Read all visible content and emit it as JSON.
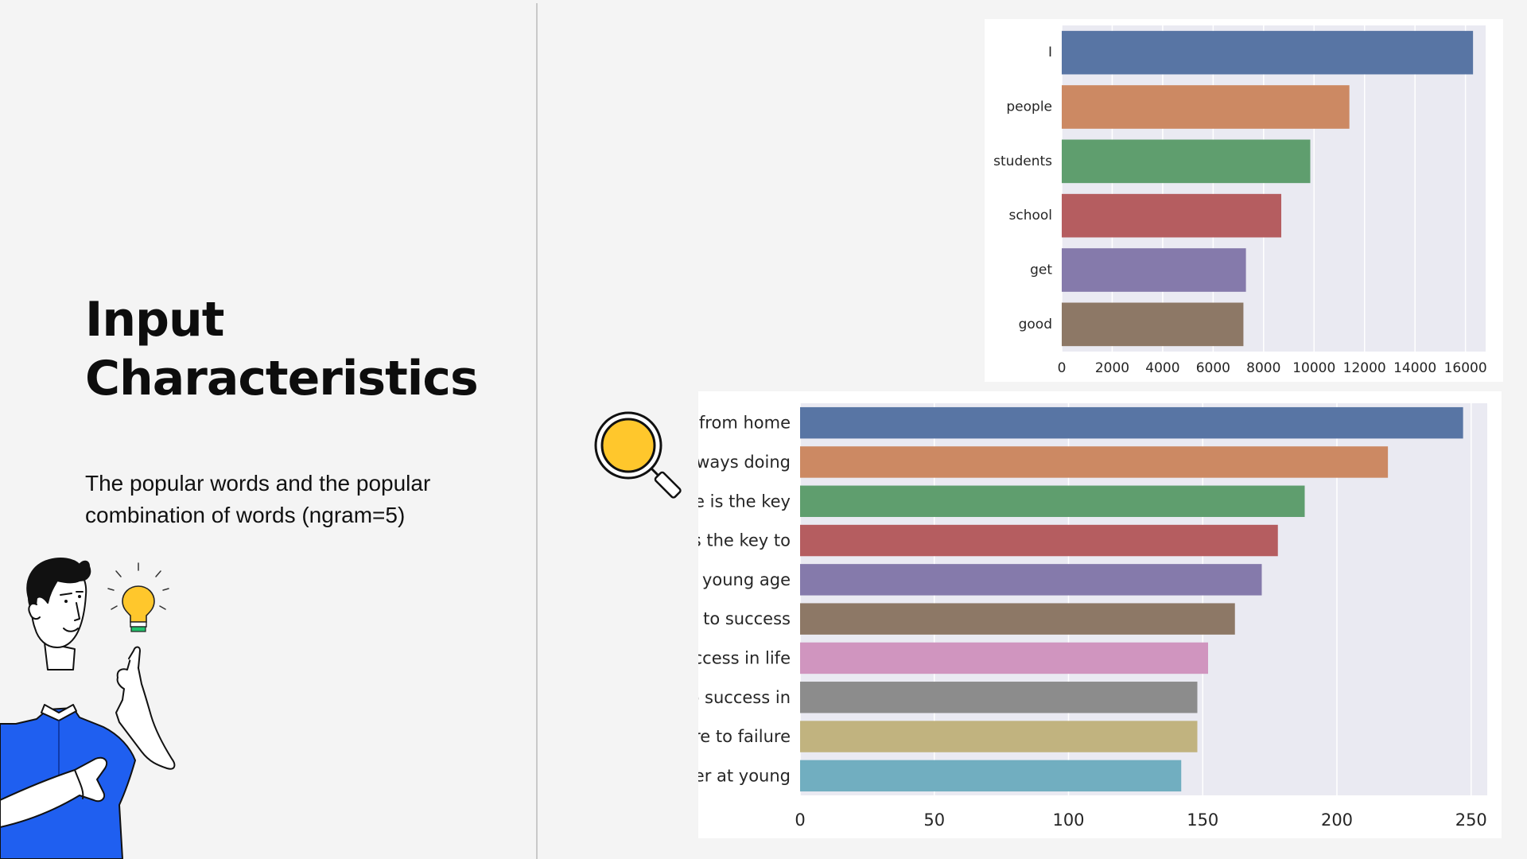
{
  "slide": {
    "title_line1": "Input",
    "title_line2": "Characteristics",
    "description": "The popular words and the popular combination of words (ngram=5)"
  },
  "icons": [
    "person-pointing-illustration",
    "lightbulb-icon",
    "magnifier-icon"
  ],
  "chart_data": [
    {
      "type": "bar",
      "orientation": "horizontal",
      "categories": [
        "I",
        "people",
        "students",
        "school",
        "get",
        "good"
      ],
      "values": [
        16300,
        11400,
        9850,
        8700,
        7300,
        7200
      ],
      "xlim": [
        0,
        16800
      ],
      "xticks": [
        0,
        2000,
        4000,
        6000,
        8000,
        10000,
        12000,
        14000,
        16000
      ],
      "grid": true,
      "colors": [
        "#5875a4",
        "#cc8963",
        "#5f9e6e",
        "#b55d60",
        "#857aab",
        "#8d7866"
      ]
    },
    {
      "type": "bar",
      "orientation": "horizontal",
      "categories": [
        "to attend classes from home",
        "if we are always doing",
        "positive attitude is the key",
        "attitude is the key to",
        "to career at young age",
        "is the key to success",
        "key to success in life",
        "the key to success in",
        "going from failure to failure",
        "commit to career at young"
      ],
      "values": [
        247,
        219,
        188,
        178,
        172,
        162,
        152,
        148,
        148,
        142
      ],
      "xlim": [
        0,
        256
      ],
      "xticks": [
        0,
        50,
        100,
        150,
        200,
        250
      ],
      "grid": true,
      "colors": [
        "#5875a4",
        "#cc8963",
        "#5f9e6e",
        "#b55d60",
        "#857aab",
        "#8d7866",
        "#d095bf",
        "#8c8c8c",
        "#c1b37f",
        "#71aec0"
      ]
    }
  ]
}
